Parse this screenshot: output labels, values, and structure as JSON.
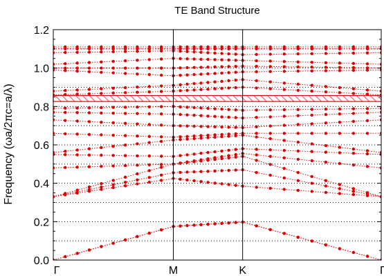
{
  "chart_data": {
    "type": "scatter",
    "title": "TE Band Structure",
    "ylabel": "Frequency (ωa/2πc=a/λ)",
    "xlabel": "",
    "ylim": [
      0,
      1.2
    ],
    "yticks": [
      "0.0",
      "0.2",
      "0.4",
      "0.6",
      "0.8",
      "1.0",
      "1.2"
    ],
    "ytick_values": [
      0,
      0.2,
      0.4,
      0.6,
      0.8,
      1.0,
      1.2
    ],
    "k_points": [
      {
        "label": "Γ",
        "pos": 0
      },
      {
        "label": "M",
        "pos": 0.5
      },
      {
        "label": "K",
        "pos": 0.7887
      },
      {
        "label": "Γ",
        "pos": 1.366
      }
    ],
    "band_gap": {
      "from": 0.826,
      "to": 0.857
    },
    "grid_y": [
      0.1,
      0.2,
      0.3,
      0.4,
      0.5,
      0.6,
      0.7,
      0.8,
      0.9,
      1.0,
      1.1
    ],
    "series_color": "#e00000",
    "bands": [
      {
        "name": "",
        "values": [
          0.0,
          0.175,
          0.198,
          0.0
        ]
      },
      {
        "name": "",
        "values": [
          0.0,
          0.175,
          0.198,
          0.0
        ]
      },
      {
        "name": "",
        "values": [
          0.33,
          0.425,
          0.385,
          0.33
        ]
      },
      {
        "name": "",
        "values": [
          0.33,
          0.455,
          0.47,
          0.33
        ]
      },
      {
        "name": "",
        "values": [
          0.33,
          0.5,
          0.54,
          0.33
        ]
      },
      {
        "name": "",
        "values": [
          0.48,
          0.5,
          0.555,
          0.48
        ]
      },
      {
        "name": "",
        "values": [
          0.55,
          0.54,
          0.58,
          0.55
        ]
      },
      {
        "name": "",
        "values": [
          0.56,
          0.625,
          0.65,
          0.56
        ]
      },
      {
        "name": "",
        "values": [
          0.66,
          0.64,
          0.66,
          0.66
        ]
      },
      {
        "name": "",
        "values": [
          0.73,
          0.7,
          0.69,
          0.73
        ]
      },
      {
        "name": "",
        "values": [
          0.77,
          0.76,
          0.74,
          0.77
        ]
      },
      {
        "name": "",
        "values": [
          0.79,
          0.8,
          0.78,
          0.79
        ]
      },
      {
        "name": "",
        "values": [
          0.86,
          0.88,
          0.9,
          0.86
        ]
      },
      {
        "name": "",
        "values": [
          0.88,
          0.91,
          0.94,
          0.88
        ]
      },
      {
        "name": "",
        "values": [
          0.99,
          0.96,
          0.98,
          0.99
        ]
      },
      {
        "name": "",
        "values": [
          1.0,
          1.0,
          1.01,
          1.0
        ]
      },
      {
        "name": "",
        "values": [
          1.02,
          1.05,
          1.04,
          1.02
        ]
      },
      {
        "name": "",
        "values": [
          1.08,
          1.09,
          1.07,
          1.08
        ]
      },
      {
        "name": "",
        "values": [
          1.1,
          1.1,
          1.1,
          1.1
        ]
      },
      {
        "name": "",
        "values": [
          1.11,
          1.11,
          1.11,
          1.11
        ]
      }
    ]
  }
}
